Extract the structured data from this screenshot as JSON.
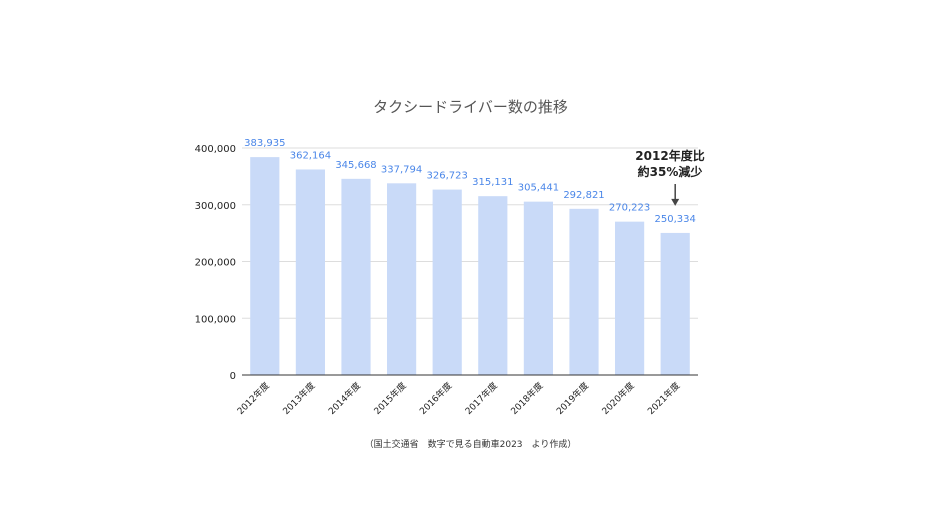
{
  "chart_data": {
    "type": "bar",
    "title": "タクシードライバー数の推移",
    "categories": [
      "2012年度",
      "2013年度",
      "2014年度",
      "2015年度",
      "2016年度",
      "2017年度",
      "2018年度",
      "2019年度",
      "2020年度",
      "2021年度"
    ],
    "values": [
      383935,
      362164,
      345668,
      337794,
      326723,
      315131,
      305441,
      292821,
      270223,
      250334
    ],
    "data_labels": [
      "383,935",
      "362,164",
      "345,668",
      "337,794",
      "326,723",
      "315,131",
      "305,441",
      "292,821",
      "270,223",
      "250,334"
    ],
    "ylim": [
      0,
      400000
    ],
    "yticks": [
      0,
      100000,
      200000,
      300000,
      400000
    ],
    "ytick_labels": [
      "0",
      "100,000",
      "200,000",
      "300,000",
      "400,000"
    ],
    "xlabel": "",
    "ylabel": "",
    "grid": true,
    "bar_color": "#c9daf8",
    "label_color": "#4a86e8",
    "annotation": {
      "line1": "2012年度比",
      "line2": "約35%減少",
      "target_category": "2021年度"
    },
    "source": "（国土交通省　数字で見る自動車2023　より作成）"
  }
}
